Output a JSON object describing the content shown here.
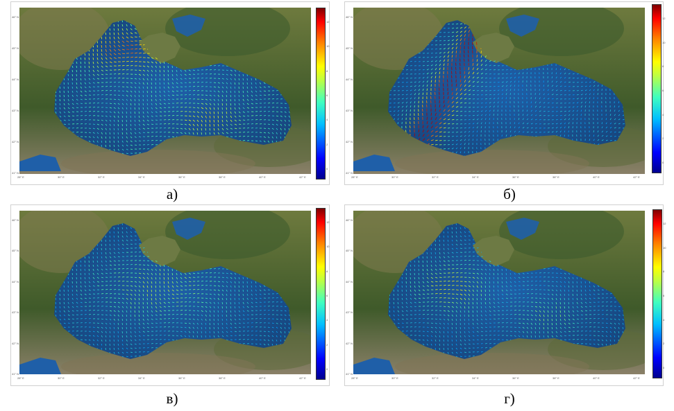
{
  "panels": [
    {
      "id": "a",
      "caption": "а)",
      "title": "",
      "ylabel": "",
      "xlabel": "",
      "cbar_label": "",
      "yticks": [
        "46° N",
        "45° N",
        "44° N",
        "43° N",
        "42° N",
        "41° N"
      ],
      "xticks": [
        "28° E",
        "30° E",
        "32° E",
        "34° E",
        "36° E",
        "38° E",
        "40° E",
        "42° E"
      ],
      "cticks": [
        "12",
        "10",
        "8",
        "6",
        "4",
        "2",
        "0"
      ]
    },
    {
      "id": "b",
      "caption": "б)",
      "title": "",
      "ylabel": "",
      "xlabel": "",
      "cbar_label": "",
      "yticks": [
        "46° N",
        "45° N",
        "44° N",
        "43° N",
        "42° N",
        "41° N"
      ],
      "xticks": [
        "28° E",
        "30° E",
        "32° E",
        "34° E",
        "36° E",
        "38° E",
        "40° E",
        "42° E"
      ],
      "cticks": [
        "12",
        "10",
        "8",
        "6",
        "4",
        "2",
        "0"
      ]
    },
    {
      "id": "v",
      "caption": "в)",
      "title": "",
      "ylabel": "",
      "xlabel": "",
      "cbar_label": "",
      "yticks": [
        "46° N",
        "45° N",
        "44° N",
        "43° N",
        "42° N",
        "41° N"
      ],
      "xticks": [
        "28° E",
        "30° E",
        "32° E",
        "34° E",
        "36° E",
        "38° E",
        "40° E",
        "42° E"
      ],
      "cticks": [
        "12",
        "10",
        "8",
        "6",
        "4",
        "2",
        "0"
      ]
    },
    {
      "id": "g",
      "caption": "г)",
      "title": "",
      "ylabel": "",
      "xlabel": "",
      "cbar_label": "",
      "yticks": [
        "46° N",
        "45° N",
        "44° N",
        "43° N",
        "42° N",
        "41° N"
      ],
      "xticks": [
        "28° E",
        "30° E",
        "32° E",
        "34° E",
        "36° E",
        "38° E",
        "40° E",
        "42° E"
      ],
      "cticks": [
        "12",
        "10",
        "8",
        "6",
        "4",
        "2",
        "0"
      ]
    }
  ],
  "colors": {
    "sea": "#1f5fa8",
    "sea_dark": "#17467e",
    "land": "#6e7a3e",
    "land_dark": "#3f5a2a",
    "mountain": "#8a8068"
  }
}
